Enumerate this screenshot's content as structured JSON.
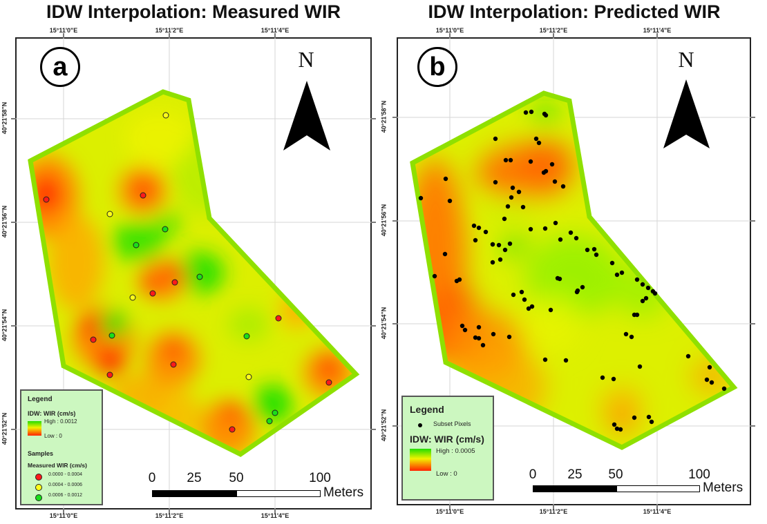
{
  "panels": [
    {
      "id": "a",
      "title": "IDW Interpolation: Measured WIR",
      "badge": "a",
      "north_label": "N",
      "lon_ticks": [
        "15°11'0\"E",
        "15°11'2\"E",
        "15°11'4\"E"
      ],
      "lat_ticks": [
        "40°21'58\"N",
        "40°21'56\"N",
        "40°21'54\"N",
        "40°21'52\"N"
      ],
      "legend": {
        "title": "Legend",
        "raster_title": "IDW: WIR (cm/s)",
        "high_label": "High : 0.0012",
        "low_label": "Low : 0",
        "samples_title": "Samples",
        "samples_subtitle": "Measured WIR (cm/s)",
        "classes": [
          {
            "label": "0.0000 - 0.0004",
            "color": "#ff1a1a"
          },
          {
            "label": "0.0004 - 0.0006",
            "color": "#ffff1a"
          },
          {
            "label": "0.0006 - 0.0012",
            "color": "#1adf1a"
          }
        ]
      },
      "scale_bar": {
        "labels": [
          "0",
          "25",
          "50",
          "100"
        ],
        "unit": "Meters"
      }
    },
    {
      "id": "b",
      "title": "IDW Interpolation: Predicted WIR",
      "badge": "b",
      "north_label": "N",
      "lon_ticks": [
        "15°11'0\"E",
        "15°11'2\"E",
        "15°11'4\"E"
      ],
      "lat_ticks": [
        "40°21'58\"N",
        "40°21'56\"N",
        "40°21'54\"N",
        "40°21'52\"N"
      ],
      "legend": {
        "title": "Legend",
        "points_label": "Subset Pixels",
        "raster_title": "IDW: WIR (cm/s)",
        "high_label": "High : 0.0005",
        "low_label": "Low : 0"
      },
      "scale_bar": {
        "labels": [
          "0",
          "25",
          "50",
          "100"
        ],
        "unit": "Meters"
      }
    }
  ],
  "colors": {
    "boundary": "#8fe000",
    "high": "#22dd00",
    "mid": "#f2f200",
    "low": "#ff2200",
    "legend_bg": "#ccf7c0"
  }
}
